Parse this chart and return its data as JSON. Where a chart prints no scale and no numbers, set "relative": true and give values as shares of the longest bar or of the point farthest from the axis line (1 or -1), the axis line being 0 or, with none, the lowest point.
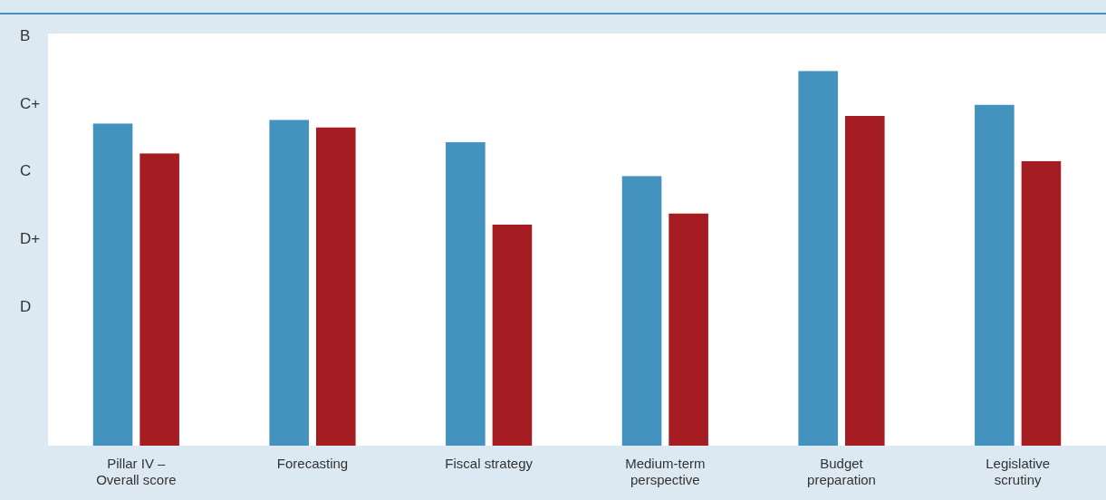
{
  "chart_data": {
    "type": "bar",
    "relative": true,
    "categories": [
      "Pillar IV – Overall score",
      "Forecasting",
      "Fiscal strategy",
      "Medium-term perspective",
      "Budget preparation",
      "Legislative scrutiny"
    ],
    "series": [
      {
        "color": "#4393be",
        "values": [
          0.86,
          0.87,
          0.81,
          0.72,
          1,
          0.91
        ]
      },
      {
        "color": "#a51c22",
        "values": [
          0.78,
          0.85,
          0.59,
          0.62,
          0.88,
          0.76
        ]
      }
    ],
    "annotations": [
      "B",
      "C+",
      "C",
      "D+",
      "D"
    ],
    "grid": false,
    "legend": false
  }
}
